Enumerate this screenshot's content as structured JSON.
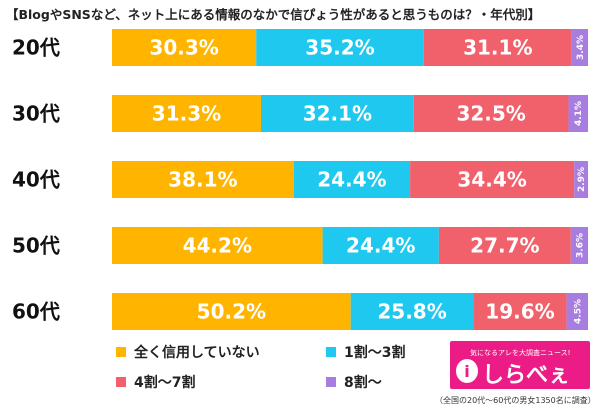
{
  "chart_data": {
    "type": "bar",
    "stacked": true,
    "orientation": "horizontal",
    "title": "【BlogやSNSなど、ネット上にある情報のなかで信ぴょう性があると思うものは？・年代別】",
    "categories": [
      "20代",
      "30代",
      "40代",
      "50代",
      "60代"
    ],
    "series": [
      {
        "name": "全く信用していない",
        "color": "#ffb500",
        "values": [
          30.3,
          31.3,
          38.1,
          44.2,
          50.2
        ],
        "labels": [
          "30.3%",
          "31.3%",
          "38.1%",
          "44.2%",
          "50.2%"
        ]
      },
      {
        "name": "1割〜3割",
        "color": "#1ec8ee",
        "values": [
          35.2,
          32.1,
          24.4,
          24.4,
          25.8
        ],
        "labels": [
          "35.2%",
          "32.1%",
          "24.4%",
          "24.4%",
          "25.8%"
        ]
      },
      {
        "name": "4割〜7割",
        "color": "#f0616c",
        "values": [
          31.1,
          32.5,
          34.4,
          27.7,
          19.6
        ],
        "labels": [
          "31.1%",
          "32.5%",
          "34.4%",
          "27.7%",
          "19.6%"
        ]
      },
      {
        "name": "8割〜",
        "color": "#a77ee0",
        "values": [
          3.4,
          4.1,
          2.9,
          3.6,
          4.5
        ],
        "labels": [
          "3.4%",
          "4.1%",
          "2.9%",
          "3.6%",
          "4.5%"
        ]
      }
    ],
    "xlim": [
      0,
      100
    ],
    "legend": "bottom"
  },
  "logo": {
    "tagline": "気になるアレを大調査ニュース!",
    "brand": "しらべぇ",
    "mark": "i"
  },
  "footnote": "（全国の20代〜60代の男女1350名に調査）"
}
